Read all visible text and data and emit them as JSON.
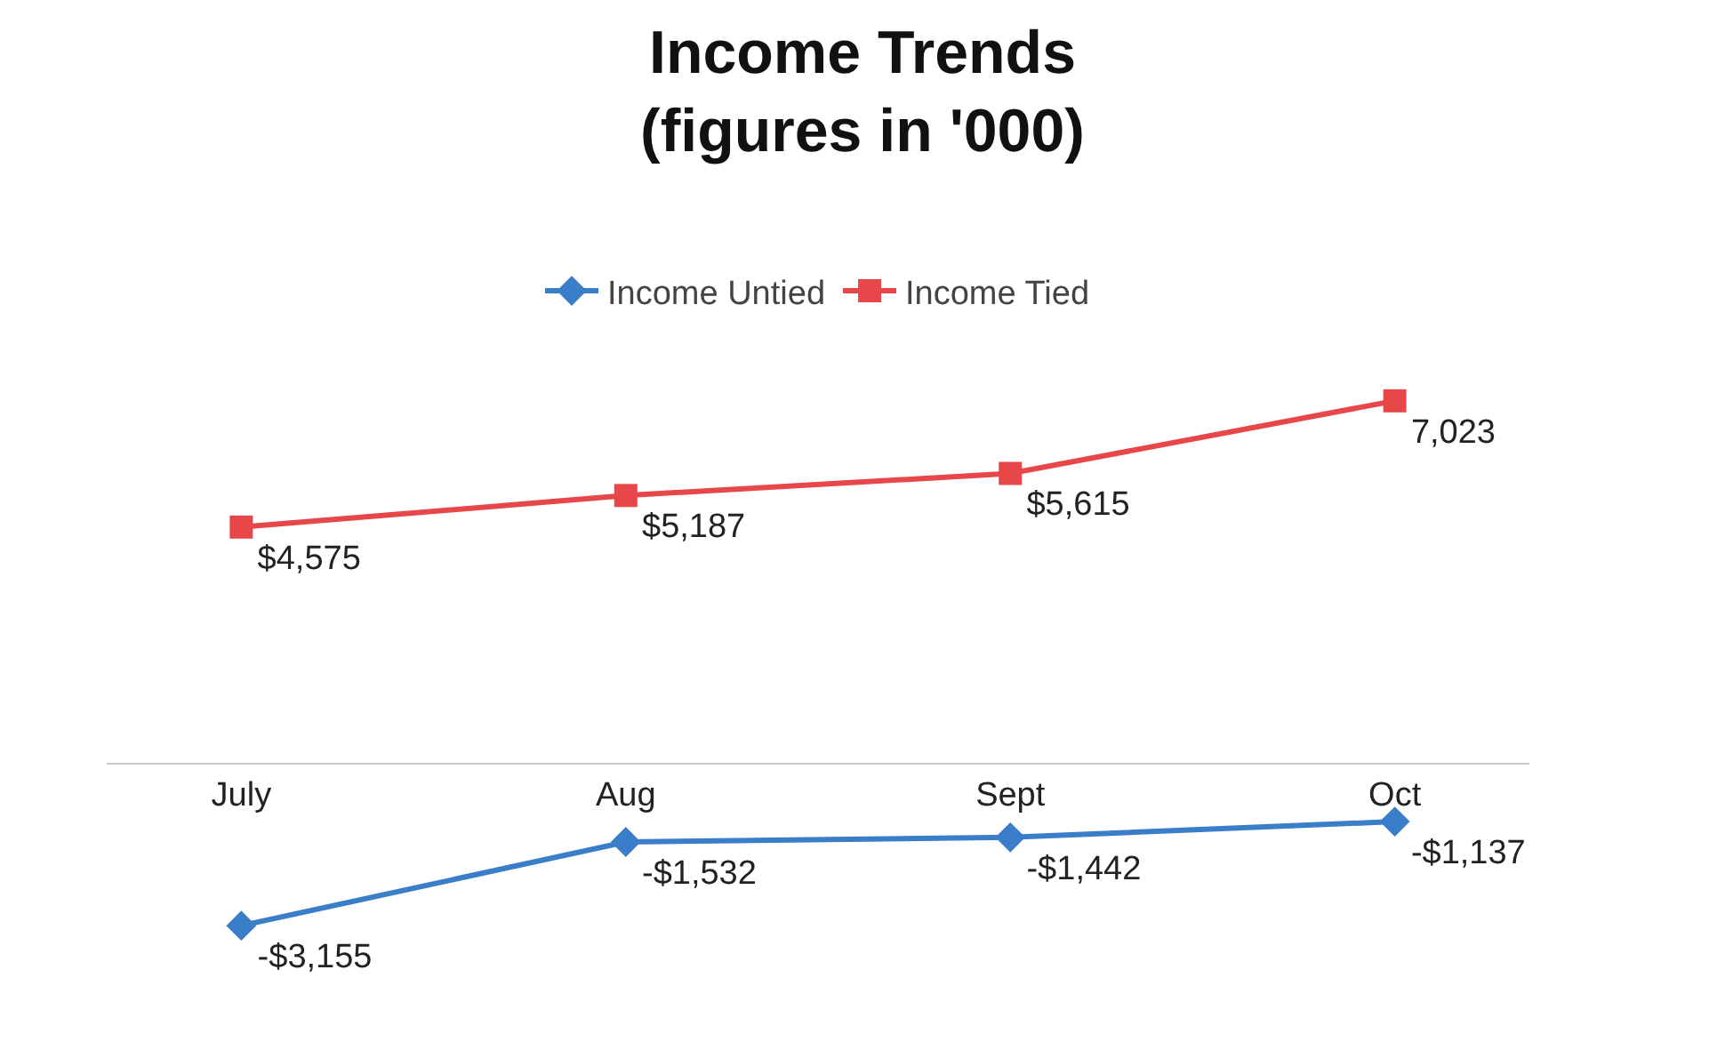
{
  "chart_data": {
    "type": "line",
    "title": "Income Trends\n(figures in '000)",
    "categories": [
      "July",
      "Aug",
      "Sept",
      "Oct"
    ],
    "series": [
      {
        "name": "Income Untied",
        "color": "#3a7dc9",
        "marker": "diamond",
        "values": [
          -3155,
          -1532,
          -1442,
          -1137
        ],
        "value_labels": [
          "-$3,155",
          "-$1,532",
          "-$1,442",
          "-$1,137"
        ]
      },
      {
        "name": "Income Tied",
        "color": "#e8474a",
        "marker": "square",
        "values": [
          4575,
          5187,
          5615,
          7023
        ],
        "value_labels": [
          "$4,575",
          "$5,187",
          "$5,615",
          "7,023"
        ]
      }
    ],
    "legend": "top",
    "line_style": "solid"
  }
}
